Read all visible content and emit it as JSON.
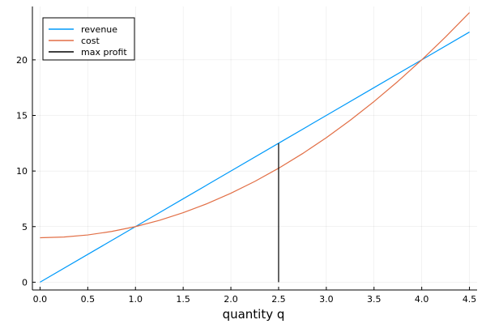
{
  "chart_data": {
    "type": "line",
    "title": "",
    "xlabel": "quantity q",
    "ylabel": "",
    "xlim": [
      -0.08,
      4.58
    ],
    "ylim": [
      -0.7,
      24.8
    ],
    "x_ticks": [
      0,
      0.5,
      1,
      1.5,
      2,
      2.5,
      3,
      3.5,
      4,
      4.5
    ],
    "x_tick_labels": [
      "0.0",
      "0.5",
      "1.0",
      "1.5",
      "2.0",
      "2.5",
      "3.0",
      "3.5",
      "4.0",
      "4.5"
    ],
    "y_ticks": [
      0,
      5,
      10,
      15,
      20
    ],
    "y_tick_labels": [
      "0",
      "5",
      "10",
      "15",
      "20"
    ],
    "grid": true,
    "legend_position": "top-left",
    "series": [
      {
        "name": "revenue",
        "color": "#009AFA",
        "x": [
          0,
          0.5,
          1,
          1.5,
          2,
          2.5,
          3,
          3.5,
          4,
          4.5
        ],
        "y": [
          0,
          2.5,
          5,
          7.5,
          10,
          12.5,
          15,
          17.5,
          20,
          22.5
        ]
      },
      {
        "name": "cost",
        "color": "#E26F46",
        "x": [
          0,
          0.25,
          0.5,
          0.75,
          1,
          1.25,
          1.5,
          1.75,
          2,
          2.25,
          2.5,
          2.75,
          3,
          3.25,
          3.5,
          3.75,
          4,
          4.25,
          4.5
        ],
        "y": [
          4,
          4.0625,
          4.25,
          4.5625,
          5,
          5.5625,
          6.25,
          7.0625,
          8,
          9.0625,
          10.25,
          11.5625,
          13,
          14.5625,
          16.25,
          18.0625,
          20,
          22.0625,
          24.25
        ]
      },
      {
        "name": "max profit",
        "color": "#000000",
        "x": [
          2.5,
          2.5
        ],
        "y": [
          0,
          12.5
        ]
      }
    ]
  }
}
